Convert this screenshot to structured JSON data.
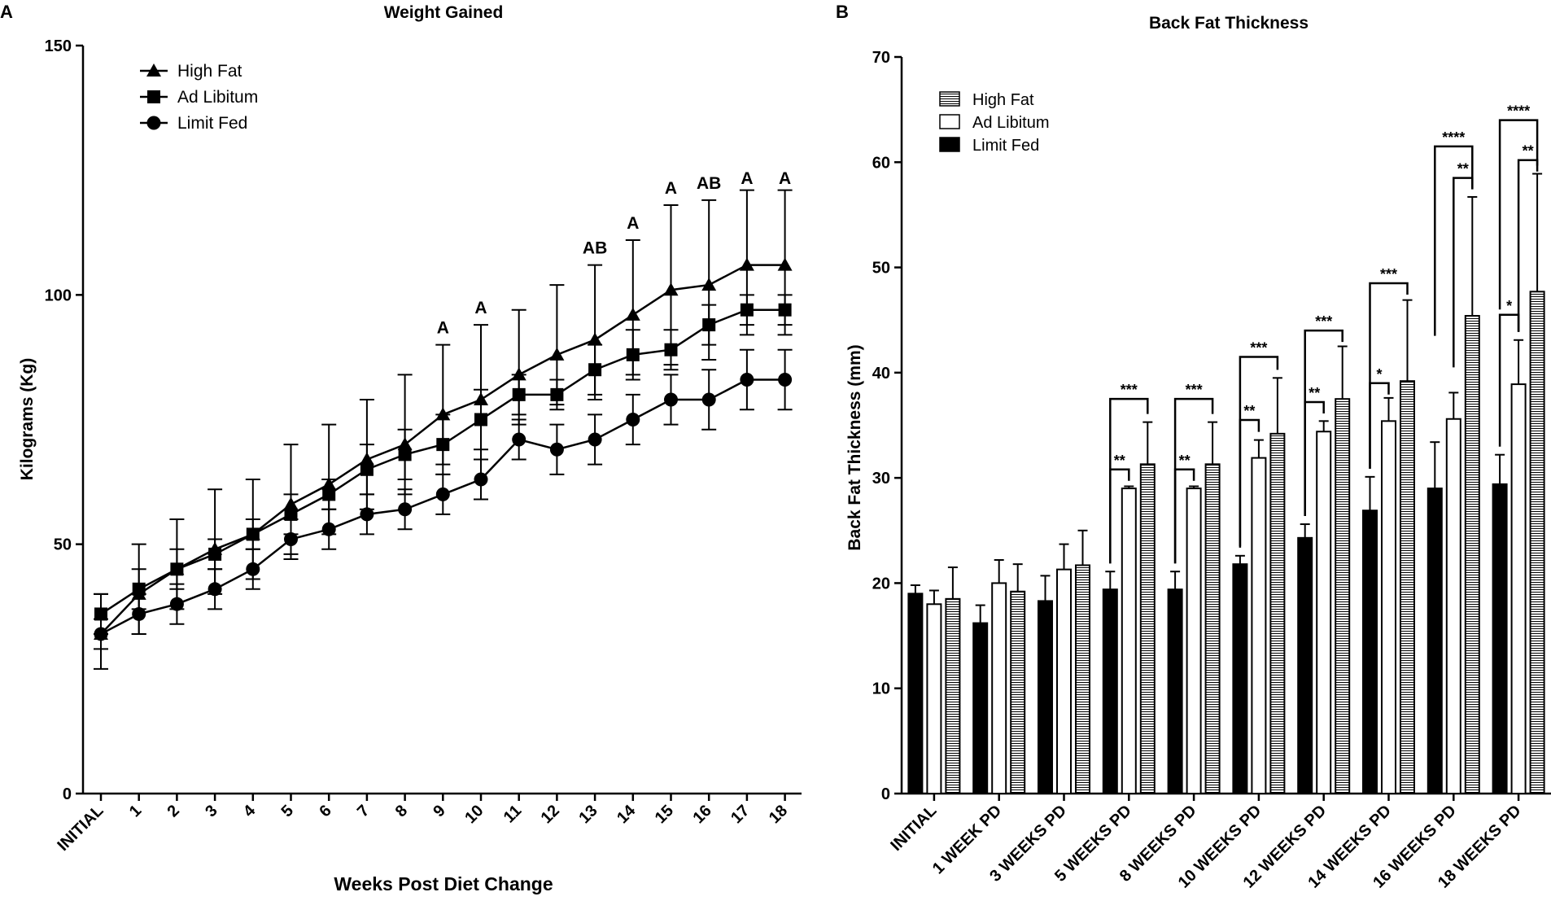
{
  "chart_data": [
    {
      "panel_label": "A",
      "type": "line",
      "title": "Weight Gained",
      "xlabel": "Weeks Post Diet Change",
      "ylabel": "Kilograms (Kg)",
      "ylim": [
        0,
        150
      ],
      "yticks": [
        "0",
        "50",
        "100",
        "150"
      ],
      "categories": [
        "INITIAL",
        "1",
        "2",
        "3",
        "4",
        "5",
        "6",
        "7",
        "8",
        "9",
        "10",
        "11",
        "12",
        "13",
        "14",
        "15",
        "16",
        "17",
        "18"
      ],
      "legend_position": "top-left",
      "series": [
        {
          "name": "High Fat",
          "marker": "triangle",
          "values": [
            32,
            40,
            45,
            49,
            52,
            58,
            62,
            67,
            70,
            76,
            79,
            84,
            88,
            91,
            96,
            101,
            102,
            106,
            106
          ],
          "err_up": [
            8,
            10,
            10,
            12,
            11,
            12,
            12,
            12,
            14,
            14,
            15,
            13,
            14,
            15,
            15,
            17,
            17,
            15,
            15
          ],
          "err_down": [
            7,
            8,
            8,
            9,
            9,
            10,
            10,
            10,
            10,
            10,
            12,
            10,
            10,
            12,
            12,
            15,
            15,
            14,
            14
          ]
        },
        {
          "name": "Ad Libitum",
          "marker": "square",
          "values": [
            36,
            41,
            45,
            48,
            52,
            56,
            60,
            65,
            68,
            70,
            75,
            80,
            80,
            85,
            88,
            89,
            94,
            97,
            97
          ],
          "err_up": [
            4,
            4,
            4,
            3,
            3,
            4,
            3,
            5,
            5,
            6,
            6,
            4,
            3,
            5,
            5,
            4,
            4,
            3,
            3
          ],
          "err_down": [
            4,
            4,
            4,
            3,
            3,
            4,
            3,
            5,
            5,
            6,
            6,
            4,
            3,
            5,
            5,
            4,
            4,
            3,
            3
          ]
        },
        {
          "name": "Limit Fed",
          "marker": "circle",
          "values": [
            32,
            36,
            38,
            41,
            45,
            51,
            53,
            56,
            57,
            60,
            63,
            71,
            69,
            71,
            75,
            79,
            79,
            83,
            83
          ],
          "err_up": [
            3,
            4,
            4,
            4,
            4,
            4,
            4,
            4,
            4,
            4,
            4,
            4,
            5,
            5,
            5,
            5,
            6,
            6,
            6
          ],
          "err_down": [
            3,
            4,
            4,
            4,
            4,
            4,
            4,
            4,
            4,
            4,
            4,
            4,
            5,
            5,
            5,
            5,
            6,
            6,
            6
          ]
        }
      ],
      "annotations": [
        {
          "category": "9",
          "text": "A",
          "value": 90
        },
        {
          "category": "10",
          "text": "A",
          "value": 94
        },
        {
          "category": "13",
          "text": "AB",
          "value": 106
        },
        {
          "category": "14",
          "text": "A",
          "value": 111
        },
        {
          "category": "15",
          "text": "A",
          "value": 118
        },
        {
          "category": "16",
          "text": "AB",
          "value": 119
        },
        {
          "category": "17",
          "text": "A",
          "value": 120
        },
        {
          "category": "18",
          "text": "A",
          "value": 120
        }
      ]
    },
    {
      "panel_label": "B",
      "type": "bar",
      "title": "Back Fat Thickness",
      "xlabel": "",
      "ylabel": "Back Fat Thickness (mm)",
      "ylim": [
        0,
        70
      ],
      "yticks": [
        "0",
        "10",
        "20",
        "30",
        "40",
        "50",
        "60",
        "70"
      ],
      "categories": [
        "INITIAL",
        "1 WEEK PD",
        "3 WEEKS PD",
        "5 WEEKS PD",
        "8 WEEKS PD",
        "10 WEEKS PD",
        "12 WEEKS PD",
        "14 WEEKS PD",
        "16 WEEKS PD",
        "18 WEEKS PD"
      ],
      "legend_position": "top-left",
      "series": [
        {
          "name": "Limit Fed",
          "fill": "#000000",
          "values": [
            19.0,
            16.2,
            18.3,
            19.4,
            19.4,
            21.8,
            24.3,
            26.9,
            29.0,
            29.4
          ],
          "errors": [
            0.8,
            1.7,
            2.4,
            1.7,
            1.7,
            0.8,
            1.3,
            3.2,
            4.4,
            2.8
          ]
        },
        {
          "name": "Ad Libitum",
          "fill": "#ffffff",
          "values": [
            18.0,
            20.0,
            21.3,
            29.0,
            29.0,
            31.9,
            34.4,
            35.4,
            35.6,
            38.9
          ],
          "errors": [
            1.3,
            2.2,
            2.4,
            0.2,
            0.2,
            1.7,
            1.0,
            2.2,
            2.5,
            4.2
          ]
        },
        {
          "name": "High Fat",
          "fill": "hatched",
          "values": [
            18.5,
            19.2,
            21.7,
            31.3,
            31.3,
            34.2,
            37.5,
            39.2,
            45.4,
            47.7
          ],
          "errors": [
            3.0,
            2.6,
            3.3,
            4.0,
            4.0,
            5.3,
            5.0,
            7.7,
            11.3,
            11.2
          ]
        }
      ],
      "significance": [
        {
          "category": "5 WEEKS PD",
          "from": 0,
          "to": 1,
          "text": "**",
          "level": 30.8
        },
        {
          "category": "5 WEEKS PD",
          "from": 0,
          "to": 2,
          "text": "***",
          "level": 37.5
        },
        {
          "category": "8 WEEKS PD",
          "from": 0,
          "to": 1,
          "text": "**",
          "level": 30.8
        },
        {
          "category": "8 WEEKS PD",
          "from": 0,
          "to": 2,
          "text": "***",
          "level": 37.5
        },
        {
          "category": "10 WEEKS PD",
          "from": 0,
          "to": 1,
          "text": "**",
          "level": 35.5
        },
        {
          "category": "10 WEEKS PD",
          "from": 0,
          "to": 2,
          "text": "***",
          "level": 41.5
        },
        {
          "category": "12 WEEKS PD",
          "from": 0,
          "to": 1,
          "text": "**",
          "level": 37.2
        },
        {
          "category": "12 WEEKS PD",
          "from": 0,
          "to": 2,
          "text": "***",
          "level": 44.0
        },
        {
          "category": "14 WEEKS PD",
          "from": 0,
          "to": 1,
          "text": "*",
          "level": 39.0
        },
        {
          "category": "14 WEEKS PD",
          "from": 0,
          "to": 2,
          "text": "***",
          "level": 48.5
        },
        {
          "category": "16 WEEKS PD",
          "from": 1,
          "to": 2,
          "text": "**",
          "level": 58.5
        },
        {
          "category": "16 WEEKS PD",
          "from": 0,
          "to": 2,
          "text": "****",
          "level": 61.5
        },
        {
          "category": "18 WEEKS PD",
          "from": 0,
          "to": 1,
          "text": "*",
          "level": 45.5
        },
        {
          "category": "18 WEEKS PD",
          "from": 1,
          "to": 2,
          "text": "**",
          "level": 60.2
        },
        {
          "category": "18 WEEKS PD",
          "from": 0,
          "to": 2,
          "text": "****",
          "level": 64.0
        }
      ]
    }
  ]
}
